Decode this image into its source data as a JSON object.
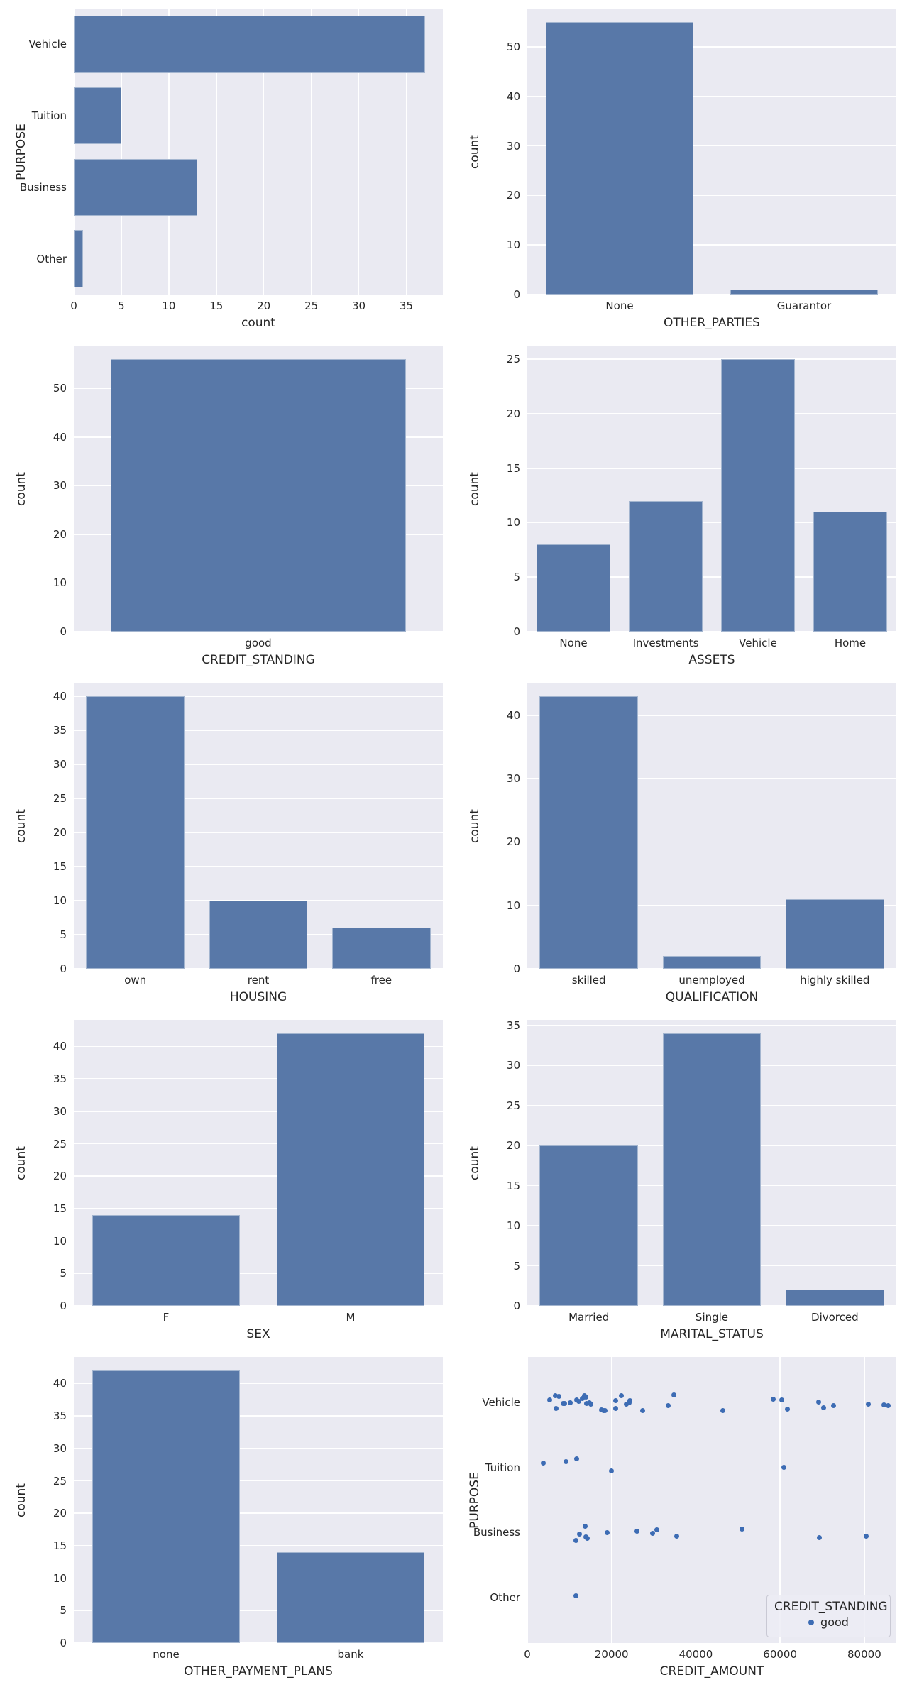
{
  "figure": {
    "description": "Grid of 10 seaborn-style subplots: 9 count bar charts of categorical credit features and 1 strip scatter of CREDIT_AMOUNT by PURPOSE"
  },
  "colors": {
    "bar_fill": "#5878a8",
    "dot_fill": "#3d6cb4",
    "axes_bg": "#eaeaf2",
    "grid": "#ffffff",
    "text": "#262626"
  },
  "chart_data": [
    {
      "id": "purpose",
      "type": "barh",
      "xlabel": "count",
      "ylabel": "PURPOSE",
      "categories": [
        "Vehicle",
        "Tuition",
        "Business",
        "Other"
      ],
      "values": [
        37,
        5,
        13,
        1
      ],
      "xticks": [
        0,
        5,
        10,
        15,
        20,
        25,
        30,
        35
      ],
      "xlim": 38.85,
      "grid": "vertical",
      "legend_position": "none"
    },
    {
      "id": "other-parties",
      "type": "bar",
      "xlabel": "OTHER_PARTIES",
      "ylabel": "count",
      "categories": [
        "None",
        "Guarantor"
      ],
      "values": [
        55,
        1
      ],
      "yticks": [
        0,
        10,
        20,
        30,
        40,
        50
      ],
      "ylim": 57.75,
      "grid": "horizontal",
      "legend_position": "none"
    },
    {
      "id": "credit-standing",
      "type": "bar",
      "xlabel": "CREDIT_STANDING",
      "ylabel": "count",
      "categories": [
        "good"
      ],
      "values": [
        56
      ],
      "yticks": [
        0,
        10,
        20,
        30,
        40,
        50
      ],
      "ylim": 58.8,
      "grid": "horizontal",
      "legend_position": "none"
    },
    {
      "id": "assets",
      "type": "bar",
      "xlabel": "ASSETS",
      "ylabel": "count",
      "categories": [
        "None",
        "Investments",
        "Vehicle",
        "Home"
      ],
      "values": [
        8,
        12,
        25,
        11
      ],
      "yticks": [
        0,
        5,
        10,
        15,
        20,
        25
      ],
      "ylim": 26.25,
      "grid": "horizontal",
      "legend_position": "none"
    },
    {
      "id": "housing",
      "type": "bar",
      "xlabel": "HOUSING",
      "ylabel": "count",
      "categories": [
        "own",
        "rent",
        "free"
      ],
      "values": [
        40,
        10,
        6
      ],
      "yticks": [
        0,
        5,
        10,
        15,
        20,
        25,
        30,
        35,
        40
      ],
      "ylim": 42,
      "grid": "horizontal",
      "legend_position": "none"
    },
    {
      "id": "qualification",
      "type": "bar",
      "xlabel": "QUALIFICATION",
      "ylabel": "count",
      "categories": [
        "skilled",
        "unemployed",
        "highly skilled"
      ],
      "values": [
        43,
        2,
        11
      ],
      "yticks": [
        0,
        10,
        20,
        30,
        40
      ],
      "ylim": 45.15,
      "grid": "horizontal",
      "legend_position": "none"
    },
    {
      "id": "sex",
      "type": "bar",
      "xlabel": "SEX",
      "ylabel": "count",
      "categories": [
        "F",
        "M"
      ],
      "values": [
        14,
        42
      ],
      "yticks": [
        0,
        5,
        10,
        15,
        20,
        25,
        30,
        35,
        40
      ],
      "ylim": 44.1,
      "grid": "horizontal",
      "legend_position": "none"
    },
    {
      "id": "marital-status",
      "type": "bar",
      "xlabel": "MARITAL_STATUS",
      "ylabel": "count",
      "categories": [
        "Married",
        "Single",
        "Divorced"
      ],
      "values": [
        20,
        34,
        2
      ],
      "yticks": [
        0,
        5,
        10,
        15,
        20,
        25,
        30,
        35
      ],
      "ylim": 35.7,
      "grid": "horizontal",
      "legend_position": "none"
    },
    {
      "id": "other-payment-plans",
      "type": "bar",
      "xlabel": "OTHER_PAYMENT_PLANS",
      "ylabel": "count",
      "categories": [
        "none",
        "bank"
      ],
      "values": [
        42,
        14
      ],
      "yticks": [
        0,
        5,
        10,
        15,
        20,
        25,
        30,
        35,
        40
      ],
      "ylim": 44.1,
      "grid": "horizontal",
      "legend_position": "none"
    },
    {
      "id": "credit-amount-by-purpose",
      "type": "scatter",
      "xlabel": "CREDIT_AMOUNT",
      "ylabel": "PURPOSE",
      "y_categories": [
        "Vehicle",
        "Tuition",
        "Business",
        "Other"
      ],
      "xticks": [
        0,
        20000,
        40000,
        60000,
        80000
      ],
      "xlim": 87600,
      "grid": "vertical",
      "legend": {
        "title": "CREDIT_STANDING",
        "items": [
          {
            "label": "good"
          }
        ]
      },
      "legend_position": "lower-right",
      "points": [
        [
          5370,
          0,
          -4
        ],
        [
          6600,
          0,
          -10
        ],
        [
          7450,
          0,
          -9
        ],
        [
          6900,
          0,
          8
        ],
        [
          8500,
          0,
          1
        ],
        [
          8850,
          0,
          1
        ],
        [
          10250,
          0,
          0
        ],
        [
          11640,
          0,
          -4
        ],
        [
          12200,
          0,
          -2
        ],
        [
          13030,
          0,
          -6
        ],
        [
          13520,
          0,
          -10
        ],
        [
          13870,
          0,
          -8
        ],
        [
          14080,
          0,
          1
        ],
        [
          14780,
          0,
          0
        ],
        [
          15120,
          0,
          2
        ],
        [
          17560,
          0,
          10
        ],
        [
          18050,
          0,
          11
        ],
        [
          18470,
          0,
          11
        ],
        [
          20910,
          0,
          -3
        ],
        [
          21050,
          0,
          8
        ],
        [
          22300,
          0,
          -10
        ],
        [
          23490,
          0,
          2
        ],
        [
          24180,
          0,
          0
        ],
        [
          24390,
          0,
          -3
        ],
        [
          27320,
          0,
          11
        ],
        [
          33450,
          0,
          4
        ],
        [
          34780,
          0,
          -11
        ],
        [
          46350,
          0,
          11
        ],
        [
          58330,
          0,
          -5
        ],
        [
          60420,
          0,
          -4
        ],
        [
          61680,
          0,
          9
        ],
        [
          69140,
          0,
          -1
        ],
        [
          70330,
          0,
          7
        ],
        [
          72770,
          0,
          4
        ],
        [
          80990,
          0,
          2
        ],
        [
          84610,
          0,
          3
        ],
        [
          85730,
          0,
          4
        ],
        [
          3760,
          1,
          -6
        ],
        [
          9200,
          1,
          -8
        ],
        [
          11780,
          1,
          -12
        ],
        [
          20000,
          1,
          5
        ],
        [
          60920,
          1,
          0
        ],
        [
          11500,
          2,
          11
        ],
        [
          12340,
          2,
          2
        ],
        [
          13730,
          2,
          -9
        ],
        [
          13900,
          2,
          6
        ],
        [
          14290,
          2,
          8
        ],
        [
          18960,
          2,
          0
        ],
        [
          26070,
          2,
          -2
        ],
        [
          29760,
          2,
          1
        ],
        [
          30810,
          2,
          -4
        ],
        [
          35480,
          2,
          5
        ],
        [
          51020,
          2,
          -5
        ],
        [
          69350,
          2,
          7
        ],
        [
          80500,
          2,
          5
        ],
        [
          11500,
          3,
          -2
        ]
      ]
    }
  ]
}
